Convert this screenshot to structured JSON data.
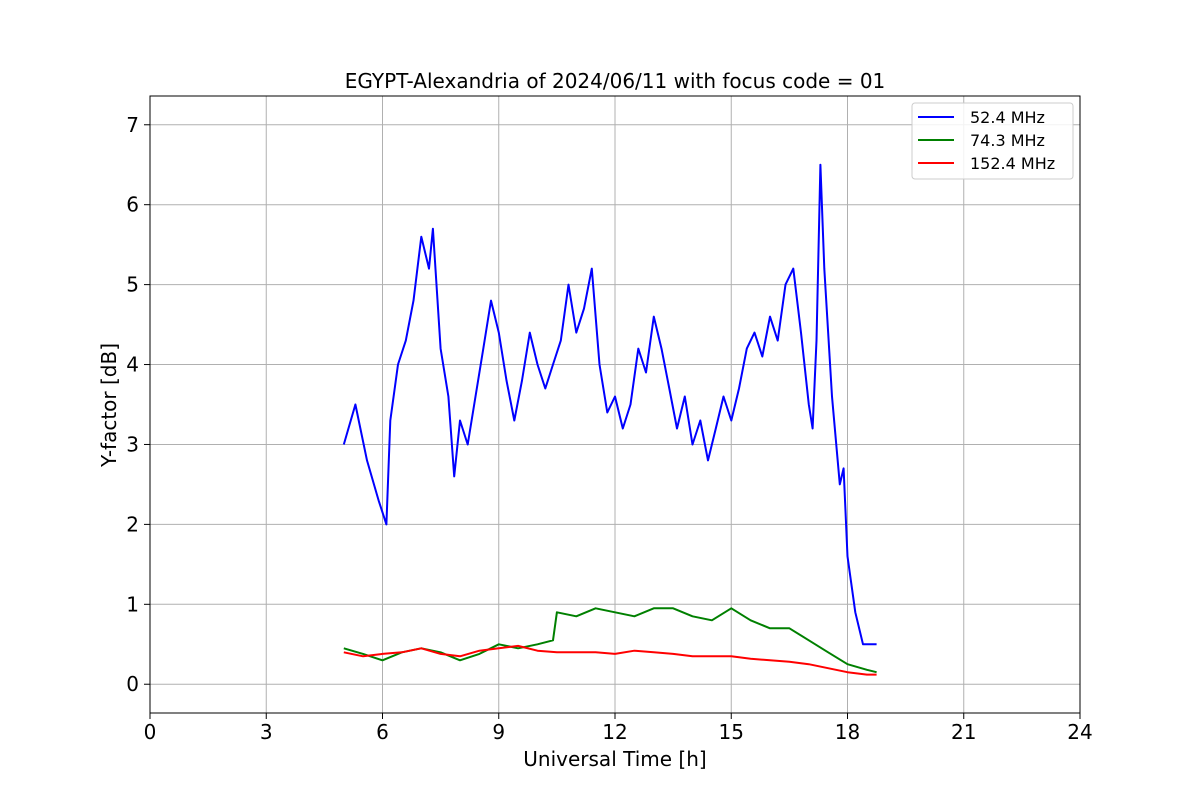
{
  "chart_data": {
    "type": "line",
    "title": "EGYPT-Alexandria of 2024/06/11 with focus code = 01",
    "xlabel": "Universal Time [h]",
    "ylabel": "Y-factor [dB]",
    "xlim": [
      0,
      24
    ],
    "ylim": [
      -0.36,
      7.36
    ],
    "xticks": [
      0,
      3,
      6,
      9,
      12,
      15,
      18,
      21,
      24
    ],
    "yticks": [
      0,
      1,
      2,
      3,
      4,
      5,
      6,
      7
    ],
    "grid": true,
    "legend_position": "top-right",
    "series": [
      {
        "name": "  52.4 MHz",
        "color": "#0000ff",
        "points": [
          [
            5.0,
            3.0
          ],
          [
            5.3,
            3.5
          ],
          [
            5.6,
            2.8
          ],
          [
            5.9,
            2.3
          ],
          [
            6.1,
            2.0
          ],
          [
            6.2,
            3.3
          ],
          [
            6.4,
            4.0
          ],
          [
            6.6,
            4.3
          ],
          [
            6.8,
            4.8
          ],
          [
            7.0,
            5.6
          ],
          [
            7.2,
            5.2
          ],
          [
            7.3,
            5.7
          ],
          [
            7.5,
            4.2
          ],
          [
            7.7,
            3.6
          ],
          [
            7.85,
            2.6
          ],
          [
            8.0,
            3.3
          ],
          [
            8.2,
            3.0
          ],
          [
            8.4,
            3.6
          ],
          [
            8.6,
            4.2
          ],
          [
            8.8,
            4.8
          ],
          [
            9.0,
            4.4
          ],
          [
            9.2,
            3.8
          ],
          [
            9.4,
            3.3
          ],
          [
            9.6,
            3.8
          ],
          [
            9.8,
            4.4
          ],
          [
            10.0,
            4.0
          ],
          [
            10.2,
            3.7
          ],
          [
            10.4,
            4.0
          ],
          [
            10.6,
            4.3
          ],
          [
            10.8,
            5.0
          ],
          [
            11.0,
            4.4
          ],
          [
            11.2,
            4.7
          ],
          [
            11.4,
            5.2
          ],
          [
            11.6,
            4.0
          ],
          [
            11.8,
            3.4
          ],
          [
            12.0,
            3.6
          ],
          [
            12.2,
            3.2
          ],
          [
            12.4,
            3.5
          ],
          [
            12.6,
            4.2
          ],
          [
            12.8,
            3.9
          ],
          [
            13.0,
            4.6
          ],
          [
            13.2,
            4.2
          ],
          [
            13.4,
            3.7
          ],
          [
            13.6,
            3.2
          ],
          [
            13.8,
            3.6
          ],
          [
            14.0,
            3.0
          ],
          [
            14.2,
            3.3
          ],
          [
            14.4,
            2.8
          ],
          [
            14.6,
            3.2
          ],
          [
            14.8,
            3.6
          ],
          [
            15.0,
            3.3
          ],
          [
            15.2,
            3.7
          ],
          [
            15.4,
            4.2
          ],
          [
            15.6,
            4.4
          ],
          [
            15.8,
            4.1
          ],
          [
            16.0,
            4.6
          ],
          [
            16.2,
            4.3
          ],
          [
            16.4,
            5.0
          ],
          [
            16.6,
            5.2
          ],
          [
            16.8,
            4.4
          ],
          [
            17.0,
            3.5
          ],
          [
            17.1,
            3.2
          ],
          [
            17.2,
            4.3
          ],
          [
            17.3,
            6.5
          ],
          [
            17.4,
            5.2
          ],
          [
            17.6,
            3.6
          ],
          [
            17.8,
            2.5
          ],
          [
            17.9,
            2.7
          ],
          [
            18.0,
            1.6
          ],
          [
            18.2,
            0.9
          ],
          [
            18.4,
            0.5
          ],
          [
            18.6,
            0.5
          ],
          [
            18.75,
            0.5
          ]
        ]
      },
      {
        "name": "  74.3 MHz",
        "color": "#008000",
        "points": [
          [
            5.0,
            0.45
          ],
          [
            5.5,
            0.38
          ],
          [
            6.0,
            0.3
          ],
          [
            6.5,
            0.4
          ],
          [
            7.0,
            0.45
          ],
          [
            7.5,
            0.4
          ],
          [
            8.0,
            0.3
          ],
          [
            8.5,
            0.38
          ],
          [
            9.0,
            0.5
          ],
          [
            9.5,
            0.45
          ],
          [
            10.0,
            0.5
          ],
          [
            10.4,
            0.55
          ],
          [
            10.5,
            0.9
          ],
          [
            11.0,
            0.85
          ],
          [
            11.5,
            0.95
          ],
          [
            12.0,
            0.9
          ],
          [
            12.5,
            0.85
          ],
          [
            13.0,
            0.95
          ],
          [
            13.5,
            0.95
          ],
          [
            14.0,
            0.85
          ],
          [
            14.5,
            0.8
          ],
          [
            15.0,
            0.95
          ],
          [
            15.5,
            0.8
          ],
          [
            16.0,
            0.7
          ],
          [
            16.5,
            0.7
          ],
          [
            17.0,
            0.55
          ],
          [
            17.5,
            0.4
          ],
          [
            18.0,
            0.25
          ],
          [
            18.5,
            0.18
          ],
          [
            18.75,
            0.15
          ]
        ]
      },
      {
        "name": "152.4 MHz",
        "color": "#ff0000",
        "points": [
          [
            5.0,
            0.4
          ],
          [
            5.5,
            0.35
          ],
          [
            6.0,
            0.38
          ],
          [
            6.5,
            0.4
          ],
          [
            7.0,
            0.45
          ],
          [
            7.5,
            0.38
          ],
          [
            8.0,
            0.35
          ],
          [
            8.5,
            0.42
          ],
          [
            9.0,
            0.45
          ],
          [
            9.5,
            0.48
          ],
          [
            10.0,
            0.42
          ],
          [
            10.5,
            0.4
          ],
          [
            11.0,
            0.4
          ],
          [
            11.5,
            0.4
          ],
          [
            12.0,
            0.38
          ],
          [
            12.5,
            0.42
          ],
          [
            13.0,
            0.4
          ],
          [
            13.5,
            0.38
          ],
          [
            14.0,
            0.35
          ],
          [
            14.5,
            0.35
          ],
          [
            15.0,
            0.35
          ],
          [
            15.5,
            0.32
          ],
          [
            16.0,
            0.3
          ],
          [
            16.5,
            0.28
          ],
          [
            17.0,
            0.25
          ],
          [
            17.5,
            0.2
          ],
          [
            18.0,
            0.15
          ],
          [
            18.5,
            0.12
          ],
          [
            18.75,
            0.12
          ]
        ]
      }
    ]
  }
}
